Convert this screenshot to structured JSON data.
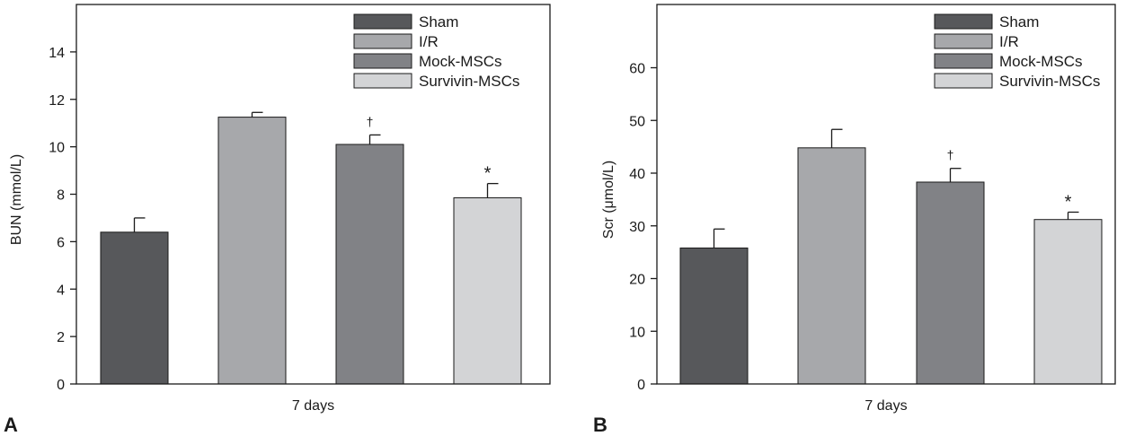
{
  "colors": {
    "Sham": "#57585b",
    "I/R": "#a7a8ab",
    "Mock-MSCs": "#818286",
    "Survivin-MSCs": "#d3d4d6",
    "frame": "#1a1a1a"
  },
  "chart_data": [
    {
      "type": "bar",
      "panel_label": "A",
      "categories": [
        "Sham",
        "I/R",
        "Mock-MSCs",
        "Survivin-MSCs"
      ],
      "values": [
        6.4,
        11.25,
        10.1,
        7.85
      ],
      "errors": [
        0.6,
        0.2,
        0.4,
        0.6
      ],
      "annotations": [
        "",
        "",
        "†",
        "*"
      ],
      "legend": [
        "Sham",
        "I/R",
        "Mock-MSCs",
        "Survivin-MSCs"
      ],
      "legend_position": "top-right",
      "xlabel": "7 days",
      "ylabel": "BUN (mmol/L)",
      "ylim": [
        0,
        16
      ],
      "yticks": [
        0,
        2,
        4,
        6,
        8,
        10,
        12,
        14
      ],
      "grid": false
    },
    {
      "type": "bar",
      "panel_label": "B",
      "categories": [
        "Sham",
        "I/R",
        "Mock-MSCs",
        "Survivin-MSCs"
      ],
      "values": [
        25.8,
        44.8,
        38.3,
        31.2
      ],
      "errors": [
        3.6,
        3.5,
        2.6,
        1.4
      ],
      "annotations": [
        "",
        "",
        "†",
        "*"
      ],
      "legend": [
        "Sham",
        "I/R",
        "Mock-MSCs",
        "Survivin-MSCs"
      ],
      "legend_position": "top-right",
      "xlabel": "7 days",
      "ylabel": "Scr (μmol/L)",
      "ylim": [
        0,
        72
      ],
      "yticks": [
        0,
        10,
        20,
        30,
        40,
        50,
        60
      ],
      "grid": false
    }
  ]
}
